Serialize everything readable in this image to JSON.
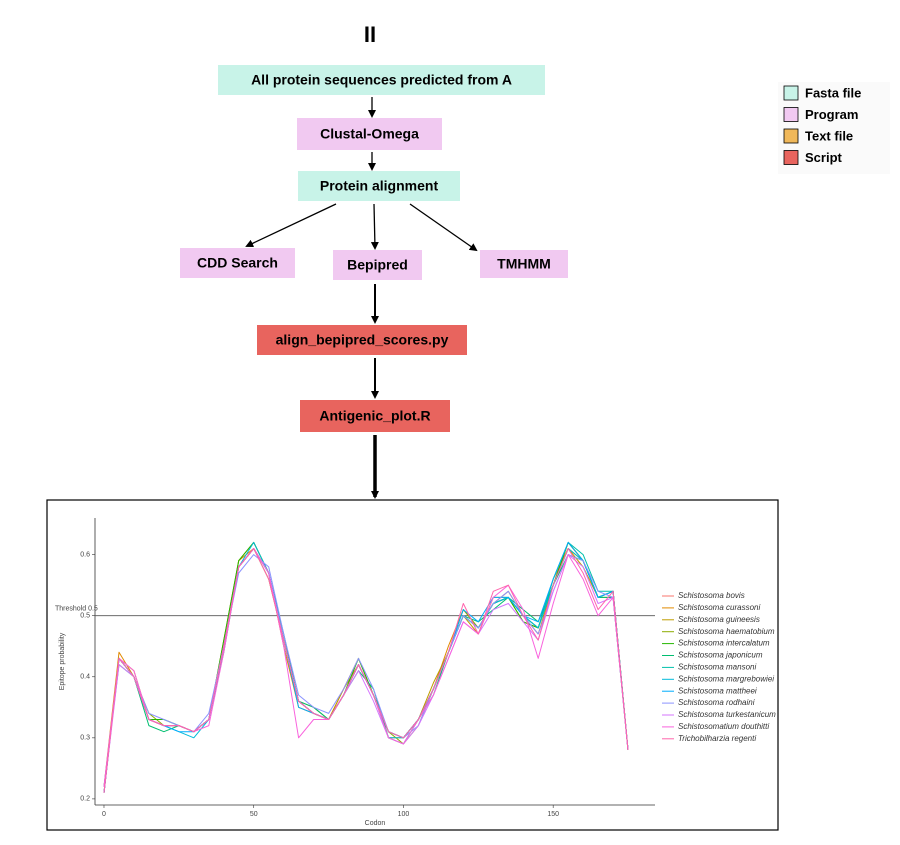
{
  "title": "II",
  "nodes": [
    {
      "label": "All protein sequences predicted from  A",
      "color": "#c8f3e8"
    },
    {
      "label": "Clustal-Omega",
      "color": "#f1c9f1"
    },
    {
      "label": "Protein alignment",
      "color": "#c8f3e8"
    },
    {
      "label": "CDD Search",
      "color": "#f1c9f1"
    },
    {
      "label": "Bepipred",
      "color": "#f1c9f1"
    },
    {
      "label": "TMHMM",
      "color": "#f1c9f1"
    },
    {
      "label": "align_bepipred_scores.py",
      "color": "#e8645e"
    },
    {
      "label": "Antigenic_plot.R",
      "color": "#e8645e"
    }
  ],
  "legend": [
    {
      "label": "Fasta file",
      "color": "#c8f3e8"
    },
    {
      "label": "Program",
      "color": "#f1c9f1"
    },
    {
      "label": "Text file",
      "color": "#f0b85a"
    },
    {
      "label": "Script",
      "color": "#e8645e"
    }
  ],
  "chart_data": {
    "type": "line",
    "xlabel": "Codon",
    "ylabel": "Epitope probability",
    "threshold": 0.5,
    "threshold_label": "Threshold 0.5",
    "xlim": [
      -3,
      184
    ],
    "ylim": [
      0.19,
      0.66
    ],
    "xticks": [
      0,
      50,
      100,
      150
    ],
    "yticks": [
      0.2,
      0.3,
      0.4,
      0.5,
      0.6
    ],
    "x": [
      0,
      5,
      10,
      15,
      20,
      25,
      30,
      35,
      40,
      45,
      50,
      55,
      60,
      65,
      70,
      75,
      80,
      85,
      90,
      95,
      100,
      105,
      110,
      115,
      120,
      125,
      130,
      135,
      140,
      145,
      150,
      155,
      160,
      165,
      170,
      175
    ],
    "series": [
      {
        "name": "Schistosoma bovis",
        "color": "#F8766D",
        "values": [
          0.21,
          0.43,
          0.4,
          0.33,
          0.32,
          0.32,
          0.31,
          0.33,
          0.45,
          0.58,
          0.61,
          0.57,
          0.46,
          0.36,
          0.34,
          0.33,
          0.37,
          0.42,
          0.37,
          0.31,
          0.3,
          0.33,
          0.38,
          0.44,
          0.5,
          0.48,
          0.52,
          0.53,
          0.5,
          0.48,
          0.55,
          0.61,
          0.59,
          0.53,
          0.54,
          0.28
        ]
      },
      {
        "name": "Schistosoma curassoni",
        "color": "#E18A00",
        "values": [
          0.22,
          0.44,
          0.4,
          0.33,
          0.32,
          0.32,
          0.31,
          0.33,
          0.46,
          0.59,
          0.61,
          0.57,
          0.45,
          0.35,
          0.34,
          0.33,
          0.38,
          0.43,
          0.37,
          0.3,
          0.3,
          0.33,
          0.38,
          0.45,
          0.51,
          0.48,
          0.52,
          0.54,
          0.5,
          0.47,
          0.55,
          0.62,
          0.59,
          0.53,
          0.54,
          0.28
        ]
      },
      {
        "name": "Schistosoma guineesis",
        "color": "#BE9C00",
        "values": [
          0.21,
          0.43,
          0.41,
          0.33,
          0.32,
          0.32,
          0.31,
          0.33,
          0.45,
          0.59,
          0.62,
          0.57,
          0.46,
          0.36,
          0.34,
          0.33,
          0.38,
          0.42,
          0.37,
          0.31,
          0.3,
          0.33,
          0.39,
          0.44,
          0.5,
          0.47,
          0.53,
          0.53,
          0.49,
          0.48,
          0.56,
          0.61,
          0.58,
          0.53,
          0.54,
          0.28
        ]
      },
      {
        "name": "Schistosoma haematobium",
        "color": "#8CAB00",
        "values": [
          0.21,
          0.43,
          0.4,
          0.34,
          0.32,
          0.32,
          0.31,
          0.33,
          0.45,
          0.58,
          0.61,
          0.56,
          0.46,
          0.36,
          0.35,
          0.33,
          0.37,
          0.42,
          0.37,
          0.31,
          0.29,
          0.32,
          0.38,
          0.44,
          0.51,
          0.48,
          0.52,
          0.53,
          0.5,
          0.48,
          0.55,
          0.61,
          0.59,
          0.53,
          0.53,
          0.28
        ]
      },
      {
        "name": "Schistosoma intercalatum",
        "color": "#24B700",
        "values": [
          0.21,
          0.43,
          0.4,
          0.33,
          0.33,
          0.32,
          0.31,
          0.33,
          0.46,
          0.59,
          0.62,
          0.57,
          0.46,
          0.36,
          0.34,
          0.33,
          0.37,
          0.43,
          0.37,
          0.31,
          0.3,
          0.33,
          0.38,
          0.44,
          0.5,
          0.48,
          0.52,
          0.53,
          0.49,
          0.48,
          0.55,
          0.62,
          0.59,
          0.53,
          0.54,
          0.28
        ]
      },
      {
        "name": "Schistosoma japonicum",
        "color": "#00BE70",
        "values": [
          0.22,
          0.42,
          0.4,
          0.32,
          0.31,
          0.32,
          0.31,
          0.33,
          0.44,
          0.58,
          0.61,
          0.57,
          0.47,
          0.36,
          0.35,
          0.33,
          0.37,
          0.41,
          0.38,
          0.3,
          0.29,
          0.33,
          0.37,
          0.44,
          0.5,
          0.49,
          0.51,
          0.53,
          0.51,
          0.49,
          0.55,
          0.6,
          0.59,
          0.53,
          0.53,
          0.28
        ]
      },
      {
        "name": "Schistosoma mansoni",
        "color": "#00C1AB",
        "values": [
          0.21,
          0.43,
          0.4,
          0.33,
          0.32,
          0.32,
          0.31,
          0.33,
          0.45,
          0.58,
          0.61,
          0.57,
          0.46,
          0.36,
          0.34,
          0.33,
          0.37,
          0.42,
          0.37,
          0.31,
          0.3,
          0.33,
          0.38,
          0.44,
          0.5,
          0.48,
          0.52,
          0.53,
          0.5,
          0.48,
          0.56,
          0.62,
          0.6,
          0.54,
          0.54,
          0.28
        ]
      },
      {
        "name": "Schistosoma margrebowiei",
        "color": "#00BBDA",
        "values": [
          0.21,
          0.43,
          0.4,
          0.33,
          0.32,
          0.31,
          0.3,
          0.33,
          0.45,
          0.58,
          0.62,
          0.57,
          0.46,
          0.36,
          0.34,
          0.33,
          0.37,
          0.42,
          0.37,
          0.3,
          0.3,
          0.33,
          0.38,
          0.44,
          0.5,
          0.48,
          0.52,
          0.53,
          0.5,
          0.48,
          0.55,
          0.61,
          0.59,
          0.53,
          0.54,
          0.28
        ]
      },
      {
        "name": "Schistosoma mattheei",
        "color": "#00ACFC",
        "values": [
          0.21,
          0.43,
          0.4,
          0.33,
          0.32,
          0.31,
          0.31,
          0.33,
          0.45,
          0.58,
          0.61,
          0.57,
          0.46,
          0.35,
          0.34,
          0.33,
          0.37,
          0.42,
          0.37,
          0.31,
          0.3,
          0.33,
          0.38,
          0.44,
          0.51,
          0.49,
          0.53,
          0.53,
          0.5,
          0.49,
          0.56,
          0.62,
          0.59,
          0.53,
          0.54,
          0.28
        ]
      },
      {
        "name": "Schistosoma rodhaini",
        "color": "#8B93FF",
        "values": [
          0.22,
          0.43,
          0.4,
          0.34,
          0.33,
          0.32,
          0.31,
          0.34,
          0.45,
          0.57,
          0.6,
          0.58,
          0.47,
          0.37,
          0.35,
          0.34,
          0.38,
          0.43,
          0.38,
          0.31,
          0.3,
          0.32,
          0.38,
          0.44,
          0.5,
          0.48,
          0.52,
          0.54,
          0.5,
          0.47,
          0.54,
          0.6,
          0.59,
          0.54,
          0.53,
          0.28
        ]
      },
      {
        "name": "Schistosoma turkestanicum",
        "color": "#D575FE",
        "values": [
          0.21,
          0.42,
          0.4,
          0.33,
          0.32,
          0.32,
          0.31,
          0.33,
          0.45,
          0.58,
          0.61,
          0.57,
          0.46,
          0.36,
          0.34,
          0.33,
          0.37,
          0.41,
          0.36,
          0.3,
          0.29,
          0.32,
          0.37,
          0.43,
          0.49,
          0.47,
          0.51,
          0.52,
          0.49,
          0.46,
          0.54,
          0.6,
          0.58,
          0.52,
          0.53,
          0.28
        ]
      },
      {
        "name": "Schistosomatium douthitti",
        "color": "#F962DD",
        "values": [
          0.22,
          0.43,
          0.41,
          0.33,
          0.32,
          0.32,
          0.31,
          0.32,
          0.44,
          0.58,
          0.61,
          0.57,
          0.45,
          0.3,
          0.33,
          0.33,
          0.37,
          0.42,
          0.37,
          0.3,
          0.29,
          0.33,
          0.37,
          0.43,
          0.49,
          0.47,
          0.53,
          0.55,
          0.51,
          0.43,
          0.52,
          0.6,
          0.56,
          0.5,
          0.53,
          0.28
        ]
      },
      {
        "name": "Trichobilharzia regenti",
        "color": "#FF65AC",
        "values": [
          0.21,
          0.43,
          0.4,
          0.33,
          0.32,
          0.32,
          0.31,
          0.33,
          0.45,
          0.58,
          0.61,
          0.56,
          0.46,
          0.36,
          0.34,
          0.33,
          0.37,
          0.42,
          0.37,
          0.31,
          0.3,
          0.33,
          0.38,
          0.44,
          0.52,
          0.47,
          0.54,
          0.55,
          0.5,
          0.46,
          0.55,
          0.61,
          0.57,
          0.51,
          0.54,
          0.28
        ]
      }
    ]
  }
}
